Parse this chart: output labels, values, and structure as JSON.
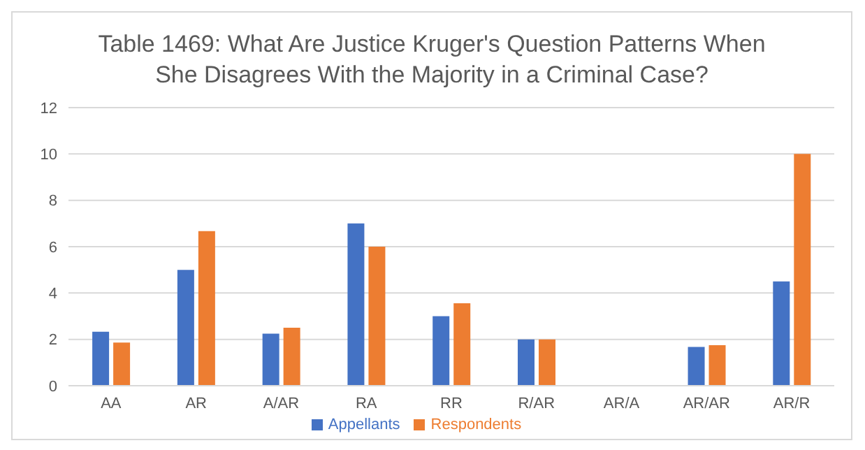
{
  "chart_data": {
    "type": "bar",
    "title": "Table 1469: What Are Justice Kruger's Question Patterns When She Disagrees With the Majority in a Criminal Case?",
    "categories": [
      "AA",
      "AR",
      "A/AR",
      "RA",
      "RR",
      "R/AR",
      "AR/A",
      "AR/AR",
      "AR/R"
    ],
    "series": [
      {
        "name": "Appellants",
        "color": "#4472c4",
        "values": [
          2.33,
          5,
          2.25,
          7,
          3,
          2,
          null,
          1.67,
          4.5
        ]
      },
      {
        "name": "Respondents",
        "color": "#ed7d31",
        "values": [
          1.86,
          6.67,
          2.5,
          6,
          3.56,
          2,
          null,
          1.75,
          10
        ]
      }
    ],
    "ylim": [
      0,
      12
    ],
    "yticks": [
      0,
      2,
      4,
      6,
      8,
      10,
      12
    ],
    "grid": "y",
    "legend": "bottom"
  }
}
